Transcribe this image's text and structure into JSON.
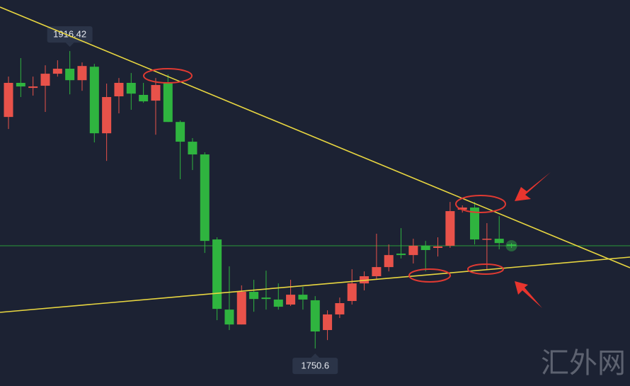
{
  "chart_data": {
    "type": "candlestick",
    "open": [
      1879.7,
      1898.7,
      1895.9,
      1897.1,
      1903.8,
      1906.6,
      1900.2,
      1907.7,
      1870.6,
      1891.2,
      1898.7,
      1892.0,
      1888.8,
      1898.7,
      1876.9,
      1865.9,
      1858.8,
      1811.4,
      1772.3,
      1764.0,
      1782.2,
      1779.0,
      1777.9,
      1775.1,
      1780.6,
      1777.5,
      1760.9,
      1769.6,
      1777.1,
      1786.9,
      1790.9,
      1796.0,
      1803.5,
      1802.7,
      1807.9,
      1806.7,
      1807.9,
      1828.0,
      1829.2,
      1811.4,
      1811.8,
      1808.6
    ],
    "high": [
      1902.2,
      1912.5,
      1902.2,
      1908.5,
      1911.3,
      1916.42,
      1910.1,
      1909.3,
      1898.3,
      1901.4,
      1904.2,
      1898.7,
      1901.4,
      1903.4,
      1877.7,
      1867.9,
      1860.0,
      1812.6,
      1796.4,
      1785.8,
      1788.9,
      1794.0,
      1786.9,
      1788.9,
      1785.0,
      1779.8,
      1771.9,
      1779.0,
      1794.8,
      1793.6,
      1814.6,
      1808.6,
      1817.7,
      1811.8,
      1810.6,
      1812.6,
      1832.3,
      1830.4,
      1832.3,
      1820.5,
      1824.4,
      1809.4
    ],
    "low": [
      1873.0,
      1890.8,
      1891.6,
      1882.5,
      1902.2,
      1892.3,
      1894.3,
      1865.5,
      1855.2,
      1881.7,
      1883.7,
      1887.6,
      1869.8,
      1876.9,
      1845.0,
      1850.1,
      1803.9,
      1766.4,
      1760.9,
      1764.0,
      1771.1,
      1772.3,
      1772.3,
      1774.3,
      1772.3,
      1750.6,
      1755.3,
      1767.6,
      1775.1,
      1783.0,
      1788.9,
      1793.6,
      1800.8,
      1798.0,
      1793.6,
      1801.9,
      1806.7,
      1826.4,
      1808.6,
      1794.8,
      1805.9,
      1806.7
    ],
    "close": [
      1898.7,
      1896.7,
      1896.7,
      1903.8,
      1906.6,
      1900.2,
      1908.1,
      1870.6,
      1890.8,
      1898.7,
      1892.7,
      1888.4,
      1897.5,
      1876.9,
      1865.9,
      1858.8,
      1810.6,
      1772.7,
      1764.0,
      1782.2,
      1778.2,
      1778.2,
      1773.9,
      1780.6,
      1777.9,
      1760.1,
      1769.6,
      1775.9,
      1786.9,
      1790.9,
      1796.0,
      1802.7,
      1802.7,
      1807.9,
      1805.5,
      1807.5,
      1827.2,
      1829.2,
      1811.4,
      1811.8,
      1809.4,
      1807.9
    ],
    "up_color": "#e8524a",
    "down_color": "#2fb43f",
    "ylim": [
      1729.7,
      1944.9
    ]
  },
  "watermark": "汇外网"
}
